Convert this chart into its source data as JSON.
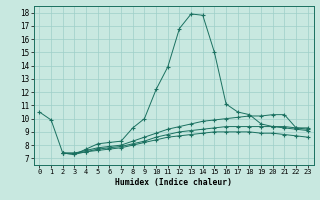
{
  "xlabel": "Humidex (Indice chaleur)",
  "bg_color": "#c8e8e0",
  "grid_color": "#9ecfc8",
  "line_color": "#1a7060",
  "xlim": [
    -0.5,
    23.5
  ],
  "ylim": [
    6.5,
    18.5
  ],
  "xticks": [
    0,
    1,
    2,
    3,
    4,
    5,
    6,
    7,
    8,
    9,
    10,
    11,
    12,
    13,
    14,
    15,
    16,
    17,
    18,
    19,
    20,
    21,
    22,
    23
  ],
  "yticks": [
    7,
    8,
    9,
    10,
    11,
    12,
    13,
    14,
    15,
    16,
    17,
    18
  ],
  "series": [
    [
      10.5,
      9.9,
      7.4,
      7.3,
      7.7,
      8.1,
      8.2,
      8.3,
      9.3,
      10.0,
      12.2,
      13.9,
      16.8,
      17.9,
      17.8,
      15.0,
      11.1,
      10.5,
      10.3,
      9.6,
      9.4,
      9.4,
      9.3,
      9.3
    ],
    [
      null,
      null,
      7.4,
      7.4,
      7.6,
      7.8,
      7.9,
      8.0,
      8.3,
      8.6,
      8.9,
      9.2,
      9.4,
      9.6,
      9.8,
      9.9,
      10.0,
      10.1,
      10.2,
      10.2,
      10.3,
      10.3,
      9.3,
      9.2
    ],
    [
      null,
      null,
      7.4,
      7.4,
      7.5,
      7.7,
      7.8,
      7.9,
      8.1,
      8.3,
      8.6,
      8.8,
      9.0,
      9.1,
      9.2,
      9.3,
      9.4,
      9.4,
      9.4,
      9.4,
      9.4,
      9.3,
      9.2,
      9.1
    ],
    [
      null,
      null,
      7.4,
      7.3,
      7.5,
      7.6,
      7.7,
      7.8,
      8.0,
      8.2,
      8.4,
      8.6,
      8.7,
      8.8,
      8.9,
      9.0,
      9.0,
      9.0,
      9.0,
      8.9,
      8.9,
      8.8,
      8.7,
      8.6
    ]
  ]
}
